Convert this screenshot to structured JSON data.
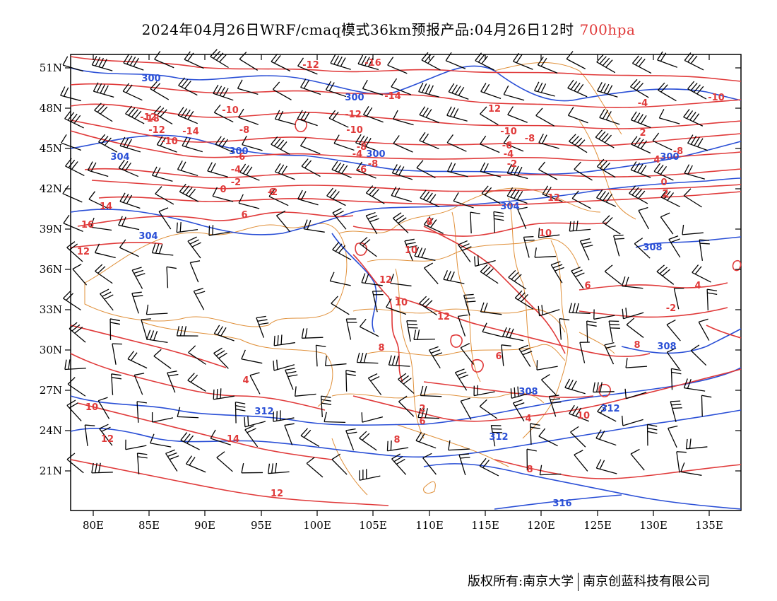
{
  "title": {
    "main": "2024年04月26日WRF/cmaq模式36km预报产品:04月26日12时",
    "level": "700hpa",
    "level_color": "#e03a3a"
  },
  "axes": {
    "lat_ticks": [
      "51N",
      "48N",
      "45N",
      "42N",
      "39N",
      "36N",
      "33N",
      "30N",
      "27N",
      "24N",
      "21N"
    ],
    "lon_ticks": [
      "80E",
      "85E",
      "90E",
      "95E",
      "100E",
      "105E",
      "110E",
      "115E",
      "120E",
      "125E",
      "130E",
      "135E"
    ]
  },
  "colors": {
    "temperature": "#e03a3a",
    "height": "#2a4fd6",
    "boundary": "#e0903a",
    "barb": "#000000"
  },
  "labels": {
    "temperature": [
      "-12",
      "-16",
      "-14",
      "-12",
      "-10",
      "-8",
      "-18",
      "-12",
      "-14",
      "-10",
      "-8",
      "-6",
      "-4",
      "-2",
      "0",
      "-2",
      "-4",
      "-6",
      "-8",
      "-10",
      "-12",
      "12",
      "-10",
      "-8",
      "-6",
      "-4",
      "-2",
      "0",
      "2",
      "2",
      "4",
      "6",
      "6",
      "8",
      "10",
      "12",
      "14",
      "16",
      "12",
      "10",
      "12",
      "8",
      "6",
      "4",
      "2",
      "4",
      "6",
      "8",
      "8",
      "10",
      "12",
      "10",
      "8",
      "6",
      "4",
      "-8",
      "-2",
      "-4",
      "-10",
      "10",
      "12",
      "14",
      "12"
    ],
    "height": [
      "300",
      "300",
      "304",
      "300",
      "300",
      "304",
      "304",
      "308",
      "308",
      "308",
      "312",
      "312",
      "312",
      "316",
      "300"
    ]
  },
  "footer": {
    "owner": "版权所有:南京大学",
    "company": "南京创蓝科技有限公司"
  }
}
